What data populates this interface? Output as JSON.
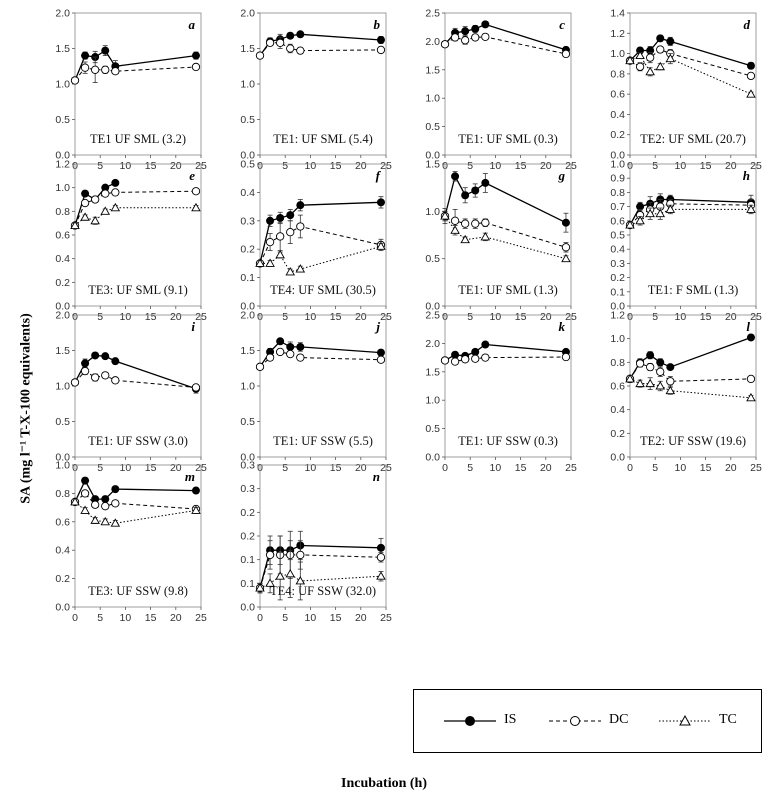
{
  "ylabel": "SA (mg l⁻¹ T-X-100 equivalents)",
  "xlabel": "Incubation (h)",
  "legend": {
    "items": [
      "IS",
      "DC",
      "TC"
    ]
  },
  "chart_data": [
    {
      "type": "line",
      "letter": "a",
      "title": "TE1 UF SML (3.2)",
      "ylim": [
        0,
        2.0
      ],
      "yticks": [
        0,
        0.5,
        1.0,
        1.5,
        2.0
      ],
      "xlim": [
        0,
        25
      ],
      "xticks": [
        0,
        5,
        10,
        15,
        20,
        25
      ],
      "x": [
        0,
        2,
        4,
        6,
        8,
        24
      ],
      "series": [
        {
          "name": "IS",
          "values": [
            1.05,
            1.4,
            1.38,
            1.47,
            1.25,
            1.4
          ],
          "err": [
            0.02,
            0.05,
            0.08,
            0.07,
            0.08,
            0.05
          ]
        },
        {
          "name": "DC",
          "values": [
            1.05,
            1.23,
            1.2,
            1.2,
            1.18,
            1.24
          ],
          "err": [
            0.02,
            0.08,
            0.18,
            0.05,
            0.03,
            0.03
          ]
        }
      ]
    },
    {
      "type": "line",
      "letter": "b",
      "title": "TE1: UF SML (5.4)",
      "ylim": [
        0,
        2.0
      ],
      "yticks": [
        0,
        0.5,
        1.0,
        1.5,
        2.0
      ],
      "xlim": [
        0,
        25
      ],
      "xticks": [
        0,
        5,
        10,
        15,
        20,
        25
      ],
      "x": [
        0,
        2,
        4,
        6,
        8,
        24
      ],
      "series": [
        {
          "name": "IS",
          "values": [
            1.4,
            1.6,
            1.63,
            1.68,
            1.7,
            1.62
          ],
          "err": [
            0.03,
            0.05,
            0.07,
            0.04,
            0.03,
            0.05
          ]
        },
        {
          "name": "DC",
          "values": [
            1.4,
            1.58,
            1.58,
            1.5,
            1.47,
            1.48
          ],
          "err": [
            0.03,
            0.04,
            0.08,
            0.06,
            0.03,
            0.04
          ]
        }
      ]
    },
    {
      "type": "line",
      "letter": "c",
      "title": "TE1: UF SML (0.3)",
      "ylim": [
        0,
        2.5
      ],
      "yticks": [
        0,
        0.5,
        1.0,
        1.5,
        2.0,
        2.5
      ],
      "xlim": [
        0,
        25
      ],
      "xticks": [
        0,
        5,
        10,
        15,
        20,
        25
      ],
      "x": [
        0,
        2,
        4,
        6,
        8,
        24
      ],
      "series": [
        {
          "name": "IS",
          "values": [
            1.95,
            2.15,
            2.18,
            2.22,
            2.3,
            1.85
          ],
          "err": [
            0.03,
            0.08,
            0.08,
            0.06,
            0.03,
            0.05
          ]
        },
        {
          "name": "DC",
          "values": [
            1.95,
            2.07,
            2.02,
            2.07,
            2.08,
            1.78
          ],
          "err": [
            0.03,
            0.06,
            0.07,
            0.05,
            0.03,
            0.04
          ]
        }
      ]
    },
    {
      "type": "line",
      "letter": "d",
      "title": "TE2: UF SML (20.7)",
      "ylim": [
        0,
        1.4
      ],
      "yticks": [
        0,
        0.2,
        0.4,
        0.6,
        0.8,
        1.0,
        1.2,
        1.4
      ],
      "xlim": [
        0,
        25
      ],
      "xticks": [
        0,
        5,
        10,
        15,
        20,
        25
      ],
      "x": [
        0,
        2,
        4,
        6,
        8,
        24
      ],
      "series": [
        {
          "name": "IS",
          "values": [
            0.93,
            1.03,
            1.03,
            1.15,
            1.12,
            0.88
          ],
          "err": [
            0.02,
            0.03,
            0.04,
            0.03,
            0.04,
            0.03
          ]
        },
        {
          "name": "DC",
          "values": [
            0.93,
            0.87,
            0.96,
            1.04,
            1.0,
            0.78
          ],
          "err": [
            0.02,
            0.04,
            0.05,
            0.03,
            0.04,
            0.02
          ]
        },
        {
          "name": "TC",
          "values": [
            0.93,
            0.98,
            0.82,
            0.87,
            0.95,
            0.6
          ],
          "err": [
            0.02,
            0.03,
            0.04,
            0.03,
            0.05,
            0.02
          ]
        }
      ]
    },
    {
      "type": "line",
      "letter": "e",
      "title": "TE3: UF SML (9.1)",
      "ylim": [
        0,
        1.2
      ],
      "yticks": [
        0,
        0.2,
        0.4,
        0.6,
        0.8,
        1.0,
        1.2
      ],
      "xlim": [
        0,
        25
      ],
      "xticks": [
        0,
        5,
        10,
        15,
        20,
        25
      ],
      "x": [
        0,
        2,
        4,
        6,
        8,
        24
      ],
      "series": [
        {
          "name": "IS",
          "values": [
            0.68,
            0.95,
            0.9,
            1.0,
            1.04,
            null
          ],
          "err": [
            0.02,
            0.02,
            0.02,
            0.02,
            0.02,
            null
          ]
        },
        {
          "name": "DC",
          "values": [
            0.68,
            0.87,
            0.9,
            0.95,
            0.96,
            0.97
          ],
          "err": [
            0.02,
            0.02,
            0.02,
            0.02,
            0.02,
            0.02
          ]
        },
        {
          "name": "TC",
          "values": [
            0.68,
            0.75,
            0.72,
            0.8,
            0.83,
            0.83
          ],
          "err": [
            0.02,
            0.02,
            0.03,
            0.02,
            0.02,
            0.02
          ]
        }
      ]
    },
    {
      "type": "line",
      "letter": "f",
      "title": "TE4: UF SML (30.5)",
      "ylim": [
        0,
        0.5
      ],
      "yticks": [
        0,
        0.1,
        0.2,
        0.3,
        0.4,
        0.5
      ],
      "xlim": [
        0,
        25
      ],
      "xticks": [
        0,
        5,
        10,
        15,
        20,
        25
      ],
      "x": [
        0,
        2,
        4,
        6,
        8,
        24
      ],
      "series": [
        {
          "name": "IS",
          "values": [
            0.15,
            0.3,
            0.31,
            0.32,
            0.355,
            0.365
          ],
          "err": [
            0.01,
            0.02,
            0.02,
            0.02,
            0.02,
            0.02
          ]
        },
        {
          "name": "DC",
          "values": [
            0.15,
            0.225,
            0.245,
            0.26,
            0.28,
            0.215
          ],
          "err": [
            0.01,
            0.03,
            0.05,
            0.04,
            0.04,
            0.02
          ]
        },
        {
          "name": "TC",
          "values": [
            0.15,
            0.15,
            0.18,
            0.12,
            0.13,
            0.21
          ],
          "err": [
            0.01,
            0.01,
            0.01,
            0.01,
            0.01,
            0.01
          ]
        }
      ]
    },
    {
      "type": "line",
      "letter": "g",
      "title": "TE1: UF SML (1.3)",
      "ylim": [
        0,
        1.5
      ],
      "yticks": [
        0,
        0.5,
        1.0,
        1.5
      ],
      "xlim": [
        0,
        25
      ],
      "xticks": [
        0,
        5,
        10,
        15,
        20,
        25
      ],
      "x": [
        0,
        2,
        4,
        6,
        8,
        24
      ],
      "series": [
        {
          "name": "IS",
          "values": [
            0.95,
            1.37,
            1.17,
            1.22,
            1.3,
            0.88
          ],
          "err": [
            0.08,
            0.05,
            0.08,
            0.07,
            0.1,
            0.1
          ]
        },
        {
          "name": "DC",
          "values": [
            0.95,
            0.9,
            0.87,
            0.87,
            0.88,
            0.62
          ],
          "err": [
            0.05,
            0.12,
            0.05,
            0.05,
            0.04,
            0.05
          ]
        },
        {
          "name": "TC",
          "values": [
            0.95,
            0.8,
            0.7,
            null,
            0.73,
            0.5
          ],
          "err": [
            0.05,
            0.05,
            0.03,
            null,
            0.04,
            0.03
          ]
        }
      ]
    },
    {
      "type": "line",
      "letter": "h",
      "title": "TE1: F SML (1.3)",
      "ylim": [
        0,
        1.0
      ],
      "yticks": [
        0,
        0.1,
        0.2,
        0.3,
        0.4,
        0.5,
        0.6,
        0.7,
        0.8,
        0.9,
        1.0
      ],
      "xlim": [
        0,
        25
      ],
      "xticks": [
        0,
        5,
        10,
        15,
        20,
        25
      ],
      "x": [
        0,
        2,
        4,
        6,
        8,
        24
      ],
      "series": [
        {
          "name": "IS",
          "values": [
            0.57,
            0.7,
            0.72,
            0.75,
            0.75,
            0.73
          ],
          "err": [
            0.02,
            0.03,
            0.05,
            0.04,
            0.03,
            0.05
          ]
        },
        {
          "name": "DC",
          "values": [
            0.57,
            0.64,
            0.68,
            0.7,
            0.72,
            0.71
          ],
          "err": [
            0.02,
            0.04,
            0.05,
            0.05,
            0.03,
            0.04
          ]
        },
        {
          "name": "TC",
          "values": [
            0.57,
            0.6,
            0.65,
            0.65,
            0.68,
            0.68
          ],
          "err": [
            0.02,
            0.03,
            0.04,
            0.04,
            0.03,
            0.03
          ]
        }
      ]
    },
    {
      "type": "line",
      "letter": "i",
      "title": "TE1: UF SSW (3.0)",
      "ylim": [
        0,
        2.0
      ],
      "yticks": [
        0,
        0.5,
        1.0,
        1.5,
        2.0
      ],
      "xlim": [
        0,
        25
      ],
      "xticks": [
        0,
        5,
        10,
        15,
        20,
        25
      ],
      "x": [
        0,
        2,
        4,
        6,
        8,
        24
      ],
      "series": [
        {
          "name": "IS",
          "values": [
            1.05,
            1.32,
            1.43,
            1.42,
            1.35,
            0.96
          ],
          "err": [
            0.02,
            0.06,
            0.03,
            0.03,
            0.04,
            0.06
          ]
        },
        {
          "name": "DC",
          "values": [
            1.05,
            1.21,
            1.12,
            1.15,
            1.08,
            0.98
          ],
          "err": [
            0.02,
            0.05,
            0.05,
            0.04,
            0.04,
            0.03
          ]
        }
      ]
    },
    {
      "type": "line",
      "letter": "j",
      "title": "TE1: UF SSW (5.5)",
      "ylim": [
        0,
        2.0
      ],
      "yticks": [
        0,
        0.5,
        1.0,
        1.5,
        2.0
      ],
      "xlim": [
        0,
        25
      ],
      "xticks": [
        0,
        5,
        10,
        15,
        20,
        25
      ],
      "x": [
        0,
        2,
        4,
        6,
        8,
        24
      ],
      "series": [
        {
          "name": "IS",
          "values": [
            1.27,
            1.48,
            1.63,
            1.55,
            1.55,
            1.47
          ],
          "err": [
            0.02,
            0.05,
            0.04,
            0.07,
            0.06,
            0.03
          ]
        },
        {
          "name": "DC",
          "values": [
            1.27,
            1.4,
            1.48,
            1.45,
            1.4,
            1.37
          ],
          "err": [
            0.02,
            0.04,
            0.03,
            0.03,
            0.03,
            0.03
          ]
        }
      ]
    },
    {
      "type": "line",
      "letter": "k",
      "title": "TE1: UF SSW (0.3)",
      "ylim": [
        0,
        2.5
      ],
      "yticks": [
        0,
        0.5,
        1.0,
        1.5,
        2.0,
        2.5
      ],
      "xlim": [
        0,
        25
      ],
      "xticks": [
        0,
        5,
        10,
        15,
        20,
        25
      ],
      "x": [
        0,
        2,
        4,
        6,
        8,
        24
      ],
      "series": [
        {
          "name": "IS",
          "values": [
            1.7,
            1.8,
            1.78,
            1.85,
            1.98,
            1.85
          ],
          "err": [
            0.03,
            0.04,
            0.04,
            0.04,
            0.03,
            0.04
          ]
        },
        {
          "name": "DC",
          "values": [
            1.7,
            1.68,
            1.72,
            1.73,
            1.75,
            1.76
          ],
          "err": [
            0.03,
            0.05,
            0.04,
            0.03,
            0.03,
            0.04
          ]
        }
      ]
    },
    {
      "type": "line",
      "letter": "l",
      "title": "TE2: UF SSW (19.6)",
      "ylim": [
        0,
        1.2
      ],
      "yticks": [
        0,
        0.2,
        0.4,
        0.6,
        0.8,
        1.0,
        1.2
      ],
      "xlim": [
        0,
        25
      ],
      "xticks": [
        0,
        5,
        10,
        15,
        20,
        25
      ],
      "x": [
        0,
        2,
        4,
        6,
        8,
        24
      ],
      "series": [
        {
          "name": "IS",
          "values": [
            0.66,
            0.8,
            0.86,
            0.8,
            0.76,
            1.01
          ],
          "err": [
            0.03,
            0.03,
            0.03,
            0.03,
            0.02,
            0.02
          ]
        },
        {
          "name": "DC",
          "values": [
            0.66,
            0.79,
            0.76,
            0.72,
            0.64,
            0.66
          ],
          "err": [
            0.03,
            0.03,
            0.03,
            0.04,
            0.04,
            0.02
          ]
        },
        {
          "name": "TC",
          "values": [
            0.66,
            0.62,
            0.62,
            0.6,
            0.56,
            0.5
          ],
          "err": [
            0.03,
            0.03,
            0.05,
            0.04,
            0.03,
            0.02
          ]
        }
      ]
    },
    {
      "type": "line",
      "letter": "m",
      "title": "TE3: UF SSW (9.8)",
      "ylim": [
        0,
        1.0
      ],
      "yticks": [
        0,
        0.2,
        0.4,
        0.6,
        0.8,
        1.0
      ],
      "xlim": [
        0,
        25
      ],
      "xticks": [
        0,
        5,
        10,
        15,
        20,
        25
      ],
      "x": [
        0,
        2,
        4,
        6,
        8,
        24
      ],
      "series": [
        {
          "name": "IS",
          "values": [
            0.74,
            0.89,
            0.76,
            0.76,
            0.83,
            0.82
          ],
          "err": [
            0.02,
            0.02,
            0.02,
            0.02,
            0.02,
            0.02
          ]
        },
        {
          "name": "DC",
          "values": [
            0.74,
            0.8,
            0.72,
            0.71,
            0.73,
            0.69
          ],
          "err": [
            0.02,
            0.02,
            0.02,
            0.02,
            0.02,
            0.02
          ]
        },
        {
          "name": "TC",
          "values": [
            0.74,
            0.68,
            0.61,
            0.6,
            0.59,
            0.68
          ],
          "err": [
            0.02,
            0.02,
            0.02,
            0.02,
            0.02,
            0.02
          ]
        }
      ]
    },
    {
      "type": "line",
      "letter": "n",
      "title": "TE4: UF SSW (32.0)",
      "ylim": [
        0,
        0.3
      ],
      "yticks": [
        0,
        0.05,
        0.1,
        0.15,
        0.2,
        0.25,
        0.3
      ],
      "ytick_labels": [
        "0.0",
        "0.1",
        "0.1",
        "0.2",
        "0.2",
        "0.3",
        "0.3"
      ],
      "xlim": [
        0,
        25
      ],
      "xticks": [
        0,
        5,
        10,
        15,
        20,
        25
      ],
      "x": [
        0,
        2,
        4,
        6,
        8,
        24
      ],
      "series": [
        {
          "name": "IS",
          "values": [
            0.04,
            0.12,
            0.12,
            0.12,
            0.13,
            0.125
          ],
          "err": [
            0.01,
            0.03,
            0.03,
            0.02,
            0.03,
            0.02
          ]
        },
        {
          "name": "DC",
          "values": [
            0.04,
            0.11,
            0.11,
            0.11,
            0.11,
            0.105
          ],
          "err": [
            0.01,
            0.03,
            0.04,
            0.05,
            0.03,
            0.01
          ]
        },
        {
          "name": "TC",
          "values": [
            0.04,
            0.05,
            0.065,
            0.07,
            0.055,
            0.065
          ],
          "err": [
            0.01,
            0.02,
            0.05,
            0.05,
            0.04,
            0.01
          ]
        }
      ]
    }
  ]
}
